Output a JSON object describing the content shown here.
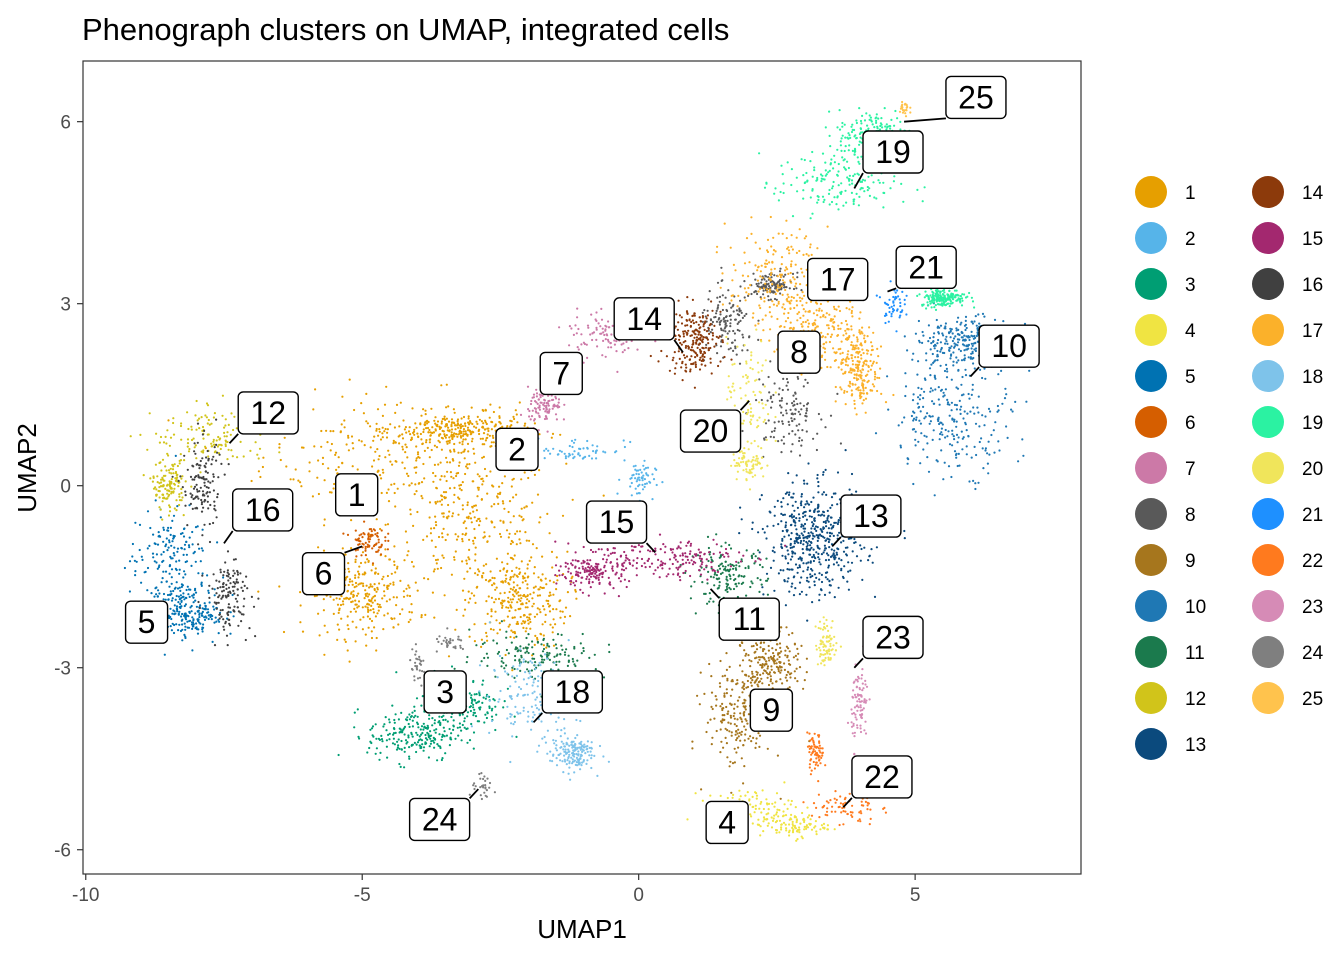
{
  "chart_data": {
    "type": "scatter",
    "title": "Phenograph clusters on UMAP, integrated cells",
    "xlabel": "UMAP1",
    "ylabel": "UMAP2",
    "xlim": [
      -10.05,
      8
    ],
    "ylim": [
      -6.4,
      7.0
    ],
    "xticks": [
      -10,
      -5,
      0,
      5
    ],
    "xtick_labels": [
      "-10",
      "-5",
      "0",
      "5"
    ],
    "yticks": [
      -6,
      -3,
      0,
      3,
      6
    ],
    "ytick_labels": [
      "-6",
      "-3",
      "0",
      "3",
      "6"
    ],
    "grid": false,
    "legend_position": "right",
    "legend": [
      {
        "label": "1",
        "color": "#E69F00"
      },
      {
        "label": "2",
        "color": "#56B4E9"
      },
      {
        "label": "3",
        "color": "#009E73"
      },
      {
        "label": "4",
        "color": "#F0E442"
      },
      {
        "label": "5",
        "color": "#0072B2"
      },
      {
        "label": "6",
        "color": "#D55E00"
      },
      {
        "label": "7",
        "color": "#CC79A7"
      },
      {
        "label": "8",
        "color": "#595959"
      },
      {
        "label": "9",
        "color": "#A6761D"
      },
      {
        "label": "10",
        "color": "#1F78B4"
      },
      {
        "label": "11",
        "color": "#1B7A4D"
      },
      {
        "label": "12",
        "color": "#D1C41A"
      },
      {
        "label": "13",
        "color": "#0B4A7D"
      },
      {
        "label": "14",
        "color": "#8C3A0B"
      },
      {
        "label": "15",
        "color": "#A3286F"
      },
      {
        "label": "16",
        "color": "#404040"
      },
      {
        "label": "17",
        "color": "#FBB12A"
      },
      {
        "label": "18",
        "color": "#7EC3EA"
      },
      {
        "label": "19",
        "color": "#2BF2A2"
      },
      {
        "label": "20",
        "color": "#F0E55B"
      },
      {
        "label": "21",
        "color": "#1E90FF"
      },
      {
        "label": "22",
        "color": "#FF7A1E"
      },
      {
        "label": "23",
        "color": "#D68BB6"
      },
      {
        "label": "24",
        "color": "#7F7F7F"
      },
      {
        "label": "25",
        "color": "#FFC34D"
      }
    ],
    "clusters": [
      {
        "id": "1",
        "color": "#E69F00",
        "regions": [
          [
            -4.5,
            0.5,
            2.3,
            1.0
          ],
          [
            -3.0,
            -0.6,
            1.5,
            1.1
          ],
          [
            -2.2,
            -1.9,
            0.9,
            0.8
          ],
          [
            -5.0,
            -1.8,
            1.0,
            0.7
          ],
          [
            -3.2,
            0.9,
            1.2,
            0.3
          ]
        ],
        "n": 1400
      },
      {
        "id": "2",
        "color": "#56B4E9",
        "regions": [
          [
            -1.1,
            0.6,
            0.9,
            0.2
          ],
          [
            0.0,
            0.1,
            0.3,
            0.3
          ]
        ],
        "n": 120
      },
      {
        "id": "3",
        "color": "#009E73",
        "regions": [
          [
            -4.1,
            -4.1,
            0.8,
            0.45
          ],
          [
            -3.2,
            -3.6,
            0.7,
            0.5
          ]
        ],
        "n": 420
      },
      {
        "id": "4",
        "color": "#F0E442",
        "regions": [
          [
            2.0,
            -5.3,
            0.8,
            0.3
          ],
          [
            2.8,
            -5.6,
            0.6,
            0.2
          ]
        ],
        "n": 200
      },
      {
        "id": "5",
        "color": "#0072B2",
        "regions": [
          [
            -8.5,
            -1.3,
            0.7,
            1.0
          ],
          [
            -8.1,
            -2.1,
            0.6,
            0.4
          ]
        ],
        "n": 380
      },
      {
        "id": "6",
        "color": "#D55E00",
        "regions": [
          [
            -4.9,
            -0.9,
            0.3,
            0.25
          ]
        ],
        "n": 80
      },
      {
        "id": "7",
        "color": "#CC79A7",
        "regions": [
          [
            -0.6,
            2.5,
            0.7,
            0.4
          ],
          [
            -1.7,
            1.3,
            0.3,
            0.3
          ]
        ],
        "n": 200
      },
      {
        "id": "8",
        "color": "#595959",
        "regions": [
          [
            1.6,
            2.6,
            0.5,
            0.6
          ],
          [
            2.7,
            1.3,
            0.6,
            0.7
          ],
          [
            2.4,
            3.3,
            0.4,
            0.2
          ]
        ],
        "n": 380
      },
      {
        "id": "9",
        "color": "#A6761D",
        "regions": [
          [
            1.8,
            -3.8,
            0.6,
            0.9
          ],
          [
            2.4,
            -3.0,
            0.5,
            0.6
          ]
        ],
        "n": 420
      },
      {
        "id": "10",
        "color": "#1F78B4",
        "regions": [
          [
            5.7,
            1.2,
            1.1,
            1.0
          ],
          [
            5.9,
            2.4,
            0.9,
            0.4
          ]
        ],
        "n": 520
      },
      {
        "id": "11",
        "color": "#1B7A4D",
        "regions": [
          [
            1.6,
            -1.5,
            0.7,
            0.5
          ],
          [
            -1.8,
            -2.8,
            1.2,
            0.4
          ]
        ],
        "n": 320
      },
      {
        "id": "12",
        "color": "#D1C41A",
        "regions": [
          [
            -7.7,
            0.8,
            1.1,
            0.5
          ],
          [
            -8.5,
            0.0,
            0.3,
            0.4
          ]
        ],
        "n": 260
      },
      {
        "id": "13",
        "color": "#0B4A7D",
        "regions": [
          [
            3.2,
            -0.9,
            0.9,
            0.9
          ]
        ],
        "n": 500
      },
      {
        "id": "14",
        "color": "#8C3A0B",
        "regions": [
          [
            1.0,
            2.4,
            0.5,
            0.55
          ]
        ],
        "n": 220
      },
      {
        "id": "15",
        "color": "#A3286F",
        "regions": [
          [
            0.5,
            -1.2,
            1.3,
            0.35
          ],
          [
            -0.8,
            -1.4,
            0.6,
            0.3
          ]
        ],
        "n": 340
      },
      {
        "id": "16",
        "color": "#404040",
        "regions": [
          [
            -7.9,
            0.0,
            0.35,
            0.8
          ],
          [
            -7.4,
            -1.8,
            0.4,
            0.6
          ]
        ],
        "n": 260
      },
      {
        "id": "17",
        "color": "#FBB12A",
        "regions": [
          [
            2.5,
            3.4,
            0.9,
            0.8
          ],
          [
            3.3,
            2.6,
            0.8,
            0.6
          ],
          [
            4.0,
            1.9,
            0.4,
            0.6
          ]
        ],
        "n": 620
      },
      {
        "id": "19",
        "color": "#2BF2A2",
        "regions": [
          [
            3.6,
            5.0,
            1.1,
            0.6
          ],
          [
            4.3,
            5.8,
            0.7,
            0.4
          ],
          [
            5.5,
            3.1,
            0.4,
            0.15
          ]
        ],
        "n": 560
      },
      {
        "id": "18",
        "color": "#7EC3EA",
        "regions": [
          [
            -1.9,
            -3.5,
            0.8,
            0.7
          ],
          [
            -1.2,
            -4.4,
            0.4,
            0.3
          ]
        ],
        "n": 320
      },
      {
        "id": "20",
        "color": "#F0E55B",
        "regions": [
          [
            2.0,
            1.5,
            0.4,
            0.9
          ],
          [
            2.0,
            0.4,
            0.3,
            0.3
          ],
          [
            3.4,
            -2.6,
            0.2,
            0.4
          ]
        ],
        "n": 240
      },
      {
        "id": "21",
        "color": "#1E90FF",
        "regions": [
          [
            4.6,
            3.0,
            0.2,
            0.3
          ]
        ],
        "n": 50
      },
      {
        "id": "22",
        "color": "#FF7A1E",
        "regions": [
          [
            3.7,
            -5.3,
            0.6,
            0.3
          ],
          [
            3.2,
            -4.4,
            0.15,
            0.3
          ]
        ],
        "n": 140
      },
      {
        "id": "23",
        "color": "#D68BB6",
        "regions": [
          [
            4.0,
            -3.6,
            0.15,
            0.7
          ]
        ],
        "n": 90
      },
      {
        "id": "24",
        "color": "#7F7F7F",
        "regions": [
          [
            -2.8,
            -5.0,
            0.25,
            0.2
          ],
          [
            -3.4,
            -2.6,
            0.3,
            0.15
          ],
          [
            -4.0,
            -3.0,
            0.15,
            0.3
          ]
        ],
        "n": 90
      },
      {
        "id": "25",
        "color": "#FFC34D",
        "regions": [
          [
            4.8,
            6.2,
            0.1,
            0.15
          ]
        ],
        "n": 25
      }
    ],
    "cluster_labels": [
      {
        "text": "25",
        "x": 6.1,
        "y": 6.4,
        "ax": 4.8,
        "ay": 6.0
      },
      {
        "text": "19",
        "x": 4.6,
        "y": 5.5,
        "ax": 3.9,
        "ay": 4.9
      },
      {
        "text": "21",
        "x": 5.2,
        "y": 3.6,
        "ax": 4.5,
        "ay": 3.2
      },
      {
        "text": "17",
        "x": 3.6,
        "y": 3.4,
        "ax": 3.6,
        "ay": 3.4
      },
      {
        "text": "14",
        "x": 0.1,
        "y": 2.75,
        "ax": 0.8,
        "ay": 2.2
      },
      {
        "text": "8",
        "x": 2.9,
        "y": 2.2,
        "ax": 2.9,
        "ay": 2.2
      },
      {
        "text": "10",
        "x": 6.7,
        "y": 2.3,
        "ax": 6.0,
        "ay": 1.8
      },
      {
        "text": "7",
        "x": -1.4,
        "y": 1.85,
        "ax": -1.4,
        "ay": 1.85
      },
      {
        "text": "20",
        "x": 1.3,
        "y": 0.9,
        "ax": 2.0,
        "ay": 1.4
      },
      {
        "text": "12",
        "x": -6.7,
        "y": 1.2,
        "ax": -7.4,
        "ay": 0.7
      },
      {
        "text": "2",
        "x": -2.2,
        "y": 0.6,
        "ax": -2.2,
        "ay": 0.6
      },
      {
        "text": "1",
        "x": -5.1,
        "y": -0.15,
        "ax": -5.1,
        "ay": -0.15
      },
      {
        "text": "16",
        "x": -6.8,
        "y": -0.4,
        "ax": -7.5,
        "ay": -0.95
      },
      {
        "text": "15",
        "x": -0.4,
        "y": -0.6,
        "ax": 0.3,
        "ay": -1.1
      },
      {
        "text": "13",
        "x": 4.2,
        "y": -0.5,
        "ax": 3.5,
        "ay": -1.0
      },
      {
        "text": "6",
        "x": -5.7,
        "y": -1.45,
        "ax": -5.0,
        "ay": -1.0
      },
      {
        "text": "11",
        "x": 2.0,
        "y": -2.2,
        "ax": 1.3,
        "ay": -1.7
      },
      {
        "text": "5",
        "x": -8.9,
        "y": -2.25,
        "ax": -8.9,
        "ay": -2.25
      },
      {
        "text": "23",
        "x": 4.6,
        "y": -2.5,
        "ax": 3.9,
        "ay": -3.0
      },
      {
        "text": "3",
        "x": -3.5,
        "y": -3.4,
        "ax": -3.5,
        "ay": -3.4
      },
      {
        "text": "18",
        "x": -1.2,
        "y": -3.4,
        "ax": -1.9,
        "ay": -3.9
      },
      {
        "text": "9",
        "x": 2.4,
        "y": -3.7,
        "ax": 2.4,
        "ay": -3.7
      },
      {
        "text": "22",
        "x": 4.4,
        "y": -4.8,
        "ax": 3.7,
        "ay": -5.3
      },
      {
        "text": "24",
        "x": -3.6,
        "y": -5.5,
        "ax": -2.9,
        "ay": -5.0
      },
      {
        "text": "4",
        "x": 1.6,
        "y": -5.55,
        "ax": 1.6,
        "ay": -5.55
      }
    ]
  }
}
